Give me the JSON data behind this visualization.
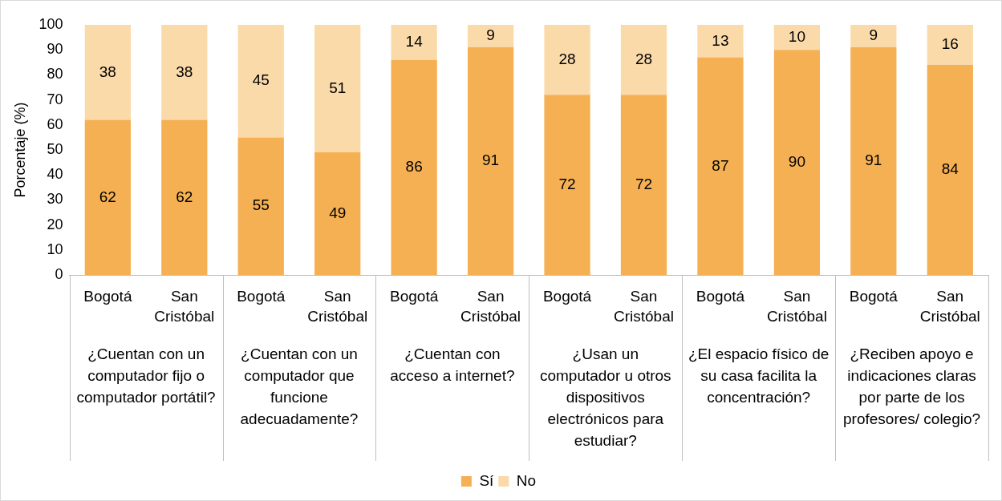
{
  "chart_data": {
    "type": "bar",
    "stacked": true,
    "ylabel": "Porcentaje (%)",
    "categories": [
      "Bogotá",
      "San Cristóbal",
      "Bogotá",
      "San Cristóbal",
      "Bogotá",
      "San Cristóbal",
      "Bogotá",
      "San Cristóbal",
      "Bogotá",
      "San Cristóbal",
      "Bogotá",
      "San Cristóbal"
    ],
    "annotations": [
      "¿Cuentan con un computador fijo o computador portátil?",
      "¿Cuentan con un computador que funcione adecuadamente?",
      "¿Cuentan con acceso a internet?",
      "¿Usan un computador u otros dispositivos electrónicos para estudiar?",
      "¿El espacio físico de su casa facilita la concentración?",
      "¿Reciben apoyo e indicaciones claras por parte de los profesores/ colegio?"
    ],
    "series": [
      {
        "name": "Sí",
        "color": "#f5b053",
        "values": [
          62,
          62,
          55,
          49,
          86,
          91,
          72,
          72,
          87,
          90,
          91,
          84
        ]
      },
      {
        "name": "No",
        "color": "#fbdaaa",
        "values": [
          38,
          38,
          45,
          51,
          14,
          9,
          28,
          28,
          13,
          10,
          9,
          16
        ]
      }
    ],
    "ylim": [
      0,
      100
    ],
    "yticks": [
      0,
      10,
      20,
      30,
      40,
      50,
      60,
      70,
      80,
      90,
      100
    ],
    "grid": false,
    "legend": "bottom",
    "data_labels": true
  }
}
